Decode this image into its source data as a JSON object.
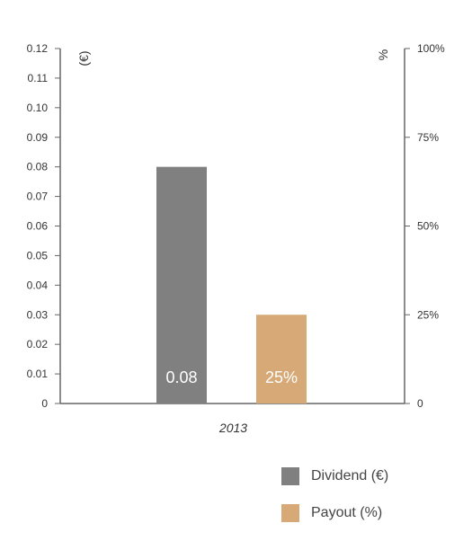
{
  "chart_data": {
    "type": "bar",
    "categories": [
      "2013"
    ],
    "series": [
      {
        "name": "Dividend (€)",
        "axis": "left",
        "values": [
          0.08
        ],
        "data_labels": [
          "0.08"
        ],
        "color": "#808080"
      },
      {
        "name": "Payout (%)",
        "axis": "right",
        "values": [
          25
        ],
        "data_labels": [
          "25%"
        ],
        "color": "#D6A977"
      }
    ],
    "left_axis": {
      "unit_label": "(€)",
      "ylim": [
        0,
        0.12
      ],
      "ticks": [
        0,
        0.01,
        0.02,
        0.03,
        0.04,
        0.05,
        0.06,
        0.07,
        0.08,
        0.09,
        0.1,
        0.11,
        0.12
      ],
      "tick_labels": [
        "0",
        "0.01",
        "0.02",
        "0.03",
        "0.04",
        "0.05",
        "0.06",
        "0.07",
        "0.08",
        "0.09",
        "0.10",
        "0.11",
        "0.12"
      ]
    },
    "right_axis": {
      "unit_label": "%",
      "ylim": [
        0,
        100
      ],
      "ticks": [
        0,
        25,
        50,
        75,
        100
      ],
      "tick_labels": [
        "0",
        "25%",
        "50%",
        "75%",
        "100%"
      ]
    },
    "grid": false,
    "legend_position": "bottom-right"
  },
  "legend": [
    {
      "label": "Dividend (€)",
      "color": "#808080"
    },
    {
      "label": "Payout (%)",
      "color": "#D6A977"
    }
  ]
}
